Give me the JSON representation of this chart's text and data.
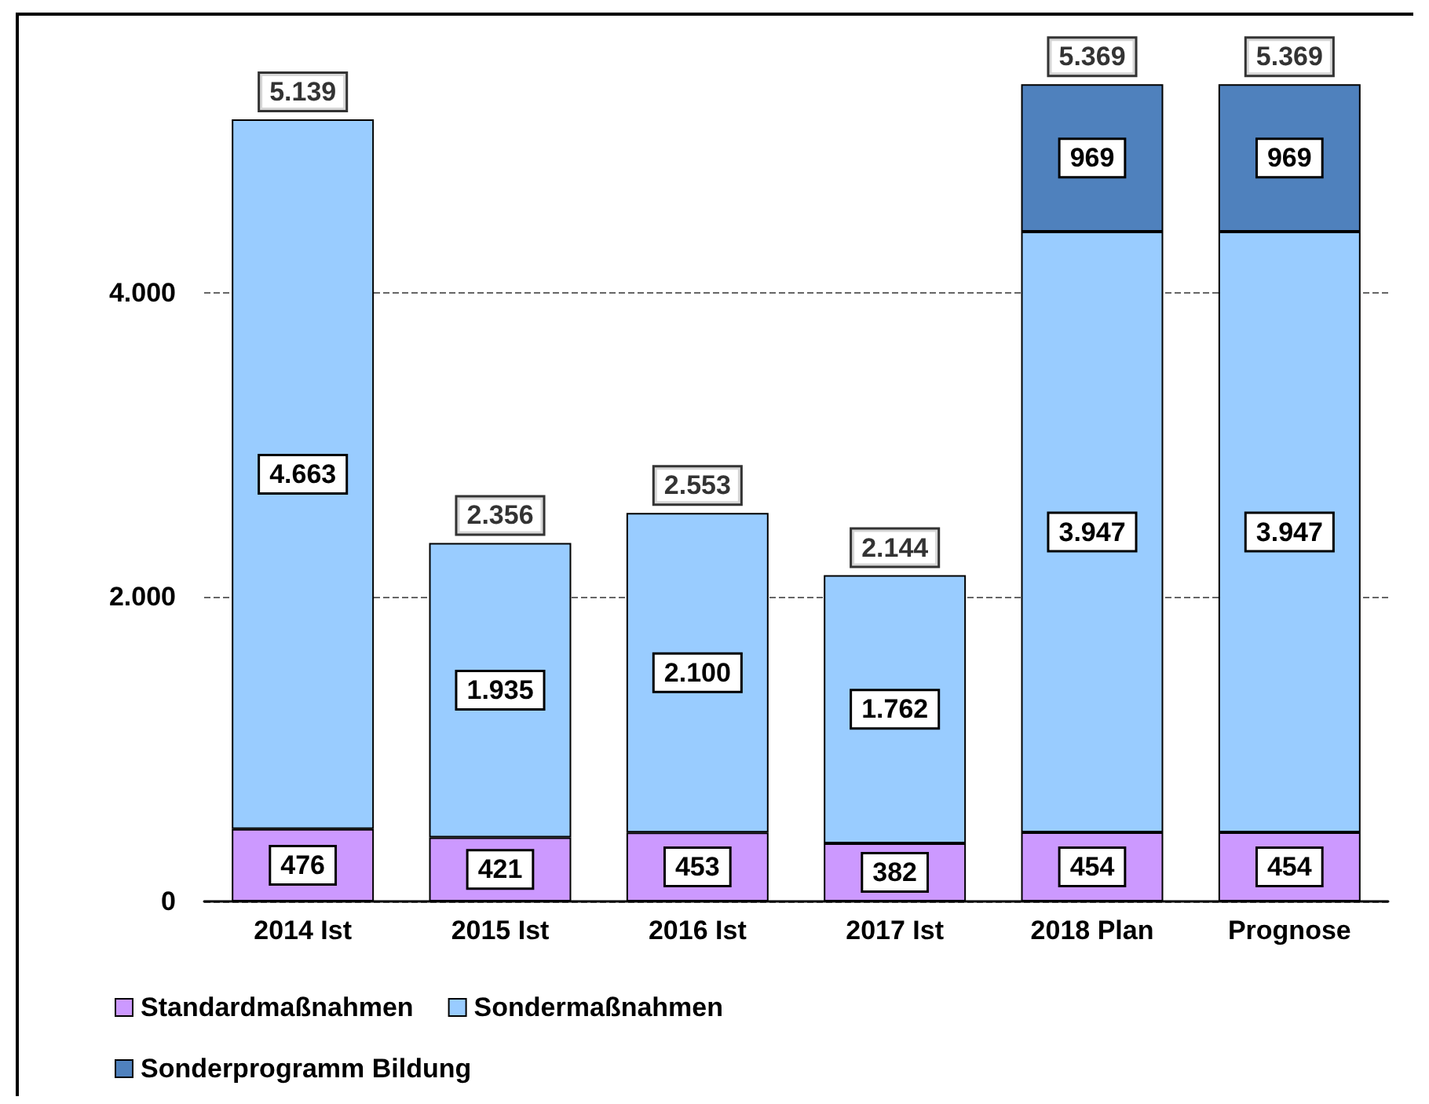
{
  "chart_data": {
    "type": "bar",
    "stacked": true,
    "categories": [
      "2014 Ist",
      "2015 Ist",
      "2016 Ist",
      "2017 Ist",
      "2018 Plan",
      "Prognose"
    ],
    "series": [
      {
        "name": "Standardmaßnahmen",
        "color": "#cc99ff",
        "values": [
          476,
          421,
          453,
          382,
          454,
          454
        ],
        "value_labels": [
          "476",
          "421",
          "453",
          "382",
          "454",
          "454"
        ]
      },
      {
        "name": "Sondermaßnahmen",
        "color": "#99ccff",
        "values": [
          4663,
          1935,
          2100,
          1762,
          3947,
          3947
        ],
        "value_labels": [
          "4.663",
          "1.935",
          "2.100",
          "1.762",
          "3.947",
          "3.947"
        ]
      },
      {
        "name": "Sonderprogramm Bildung",
        "color": "#4f81bd",
        "values": [
          null,
          null,
          null,
          null,
          969,
          969
        ],
        "value_labels": [
          null,
          null,
          null,
          null,
          "969",
          "969"
        ]
      }
    ],
    "totals": [
      "5.139",
      "2.356",
      "2.553",
      "2.144",
      "5.369",
      "5.369"
    ],
    "ylim": [
      0,
      5800
    ],
    "yticks": [
      {
        "value": 0,
        "label": "0"
      },
      {
        "value": 2000,
        "label": "2.000"
      },
      {
        "value": 4000,
        "label": "4.000"
      }
    ],
    "grid": "y",
    "legend": "bottom"
  }
}
